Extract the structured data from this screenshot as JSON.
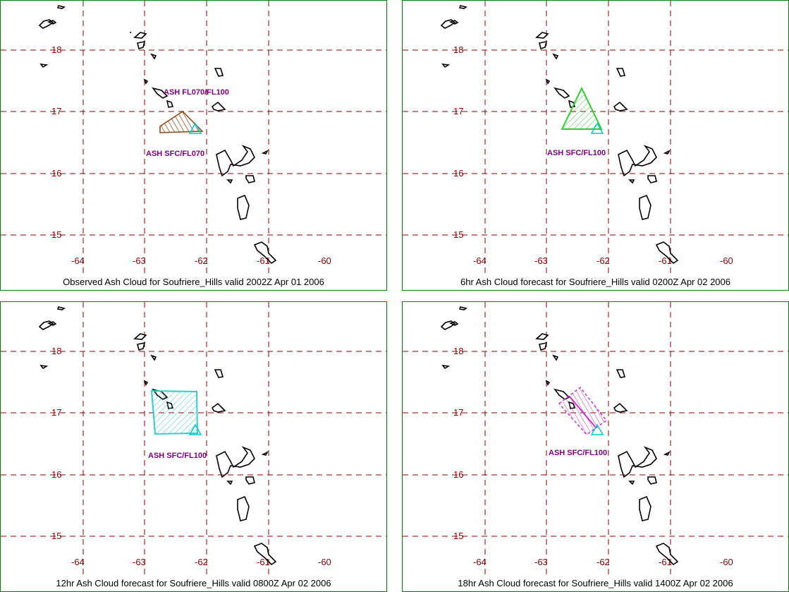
{
  "map_data": {
    "lat_ticks": [
      "18",
      "17",
      "16",
      "15"
    ],
    "lon_ticks": [
      "-64",
      "-63",
      "-62",
      "-61",
      "-60"
    ],
    "lat_values": [
      18,
      17,
      16,
      15
    ],
    "lon_values": [
      -64,
      -63,
      -62,
      -61,
      -60
    ],
    "grid_color": "#8b0000",
    "label_color": "#800080",
    "volcano_marker_color": "#00cccc"
  },
  "panels": [
    {
      "caption": "Observed Ash Cloud for Soufriere_Hills valid 2002Z Apr 01 2006",
      "cloud_color": "#8b4513",
      "labels": [
        "ASH FL070/FL100",
        "ASH SFC/FL070"
      ]
    },
    {
      "caption": "6hr Ash Cloud forecast for Soufriere_Hills valid 0200Z Apr 02 2006",
      "cloud_color": "#33cc33",
      "labels": [
        "ASH SFC/FL100"
      ]
    },
    {
      "caption": "12hr Ash Cloud forecast for Soufriere_Hills valid 0800Z Apr 02 2006",
      "cloud_color": "#33cccc",
      "labels": [
        "ASH SFC/FL100"
      ]
    },
    {
      "caption": "18hr Ash Cloud forecast for Soufriere_Hills valid 1400Z Apr 02 2006",
      "cloud_color": "#cc33cc",
      "labels": [
        "ASH SFC/FL100"
      ]
    }
  ]
}
